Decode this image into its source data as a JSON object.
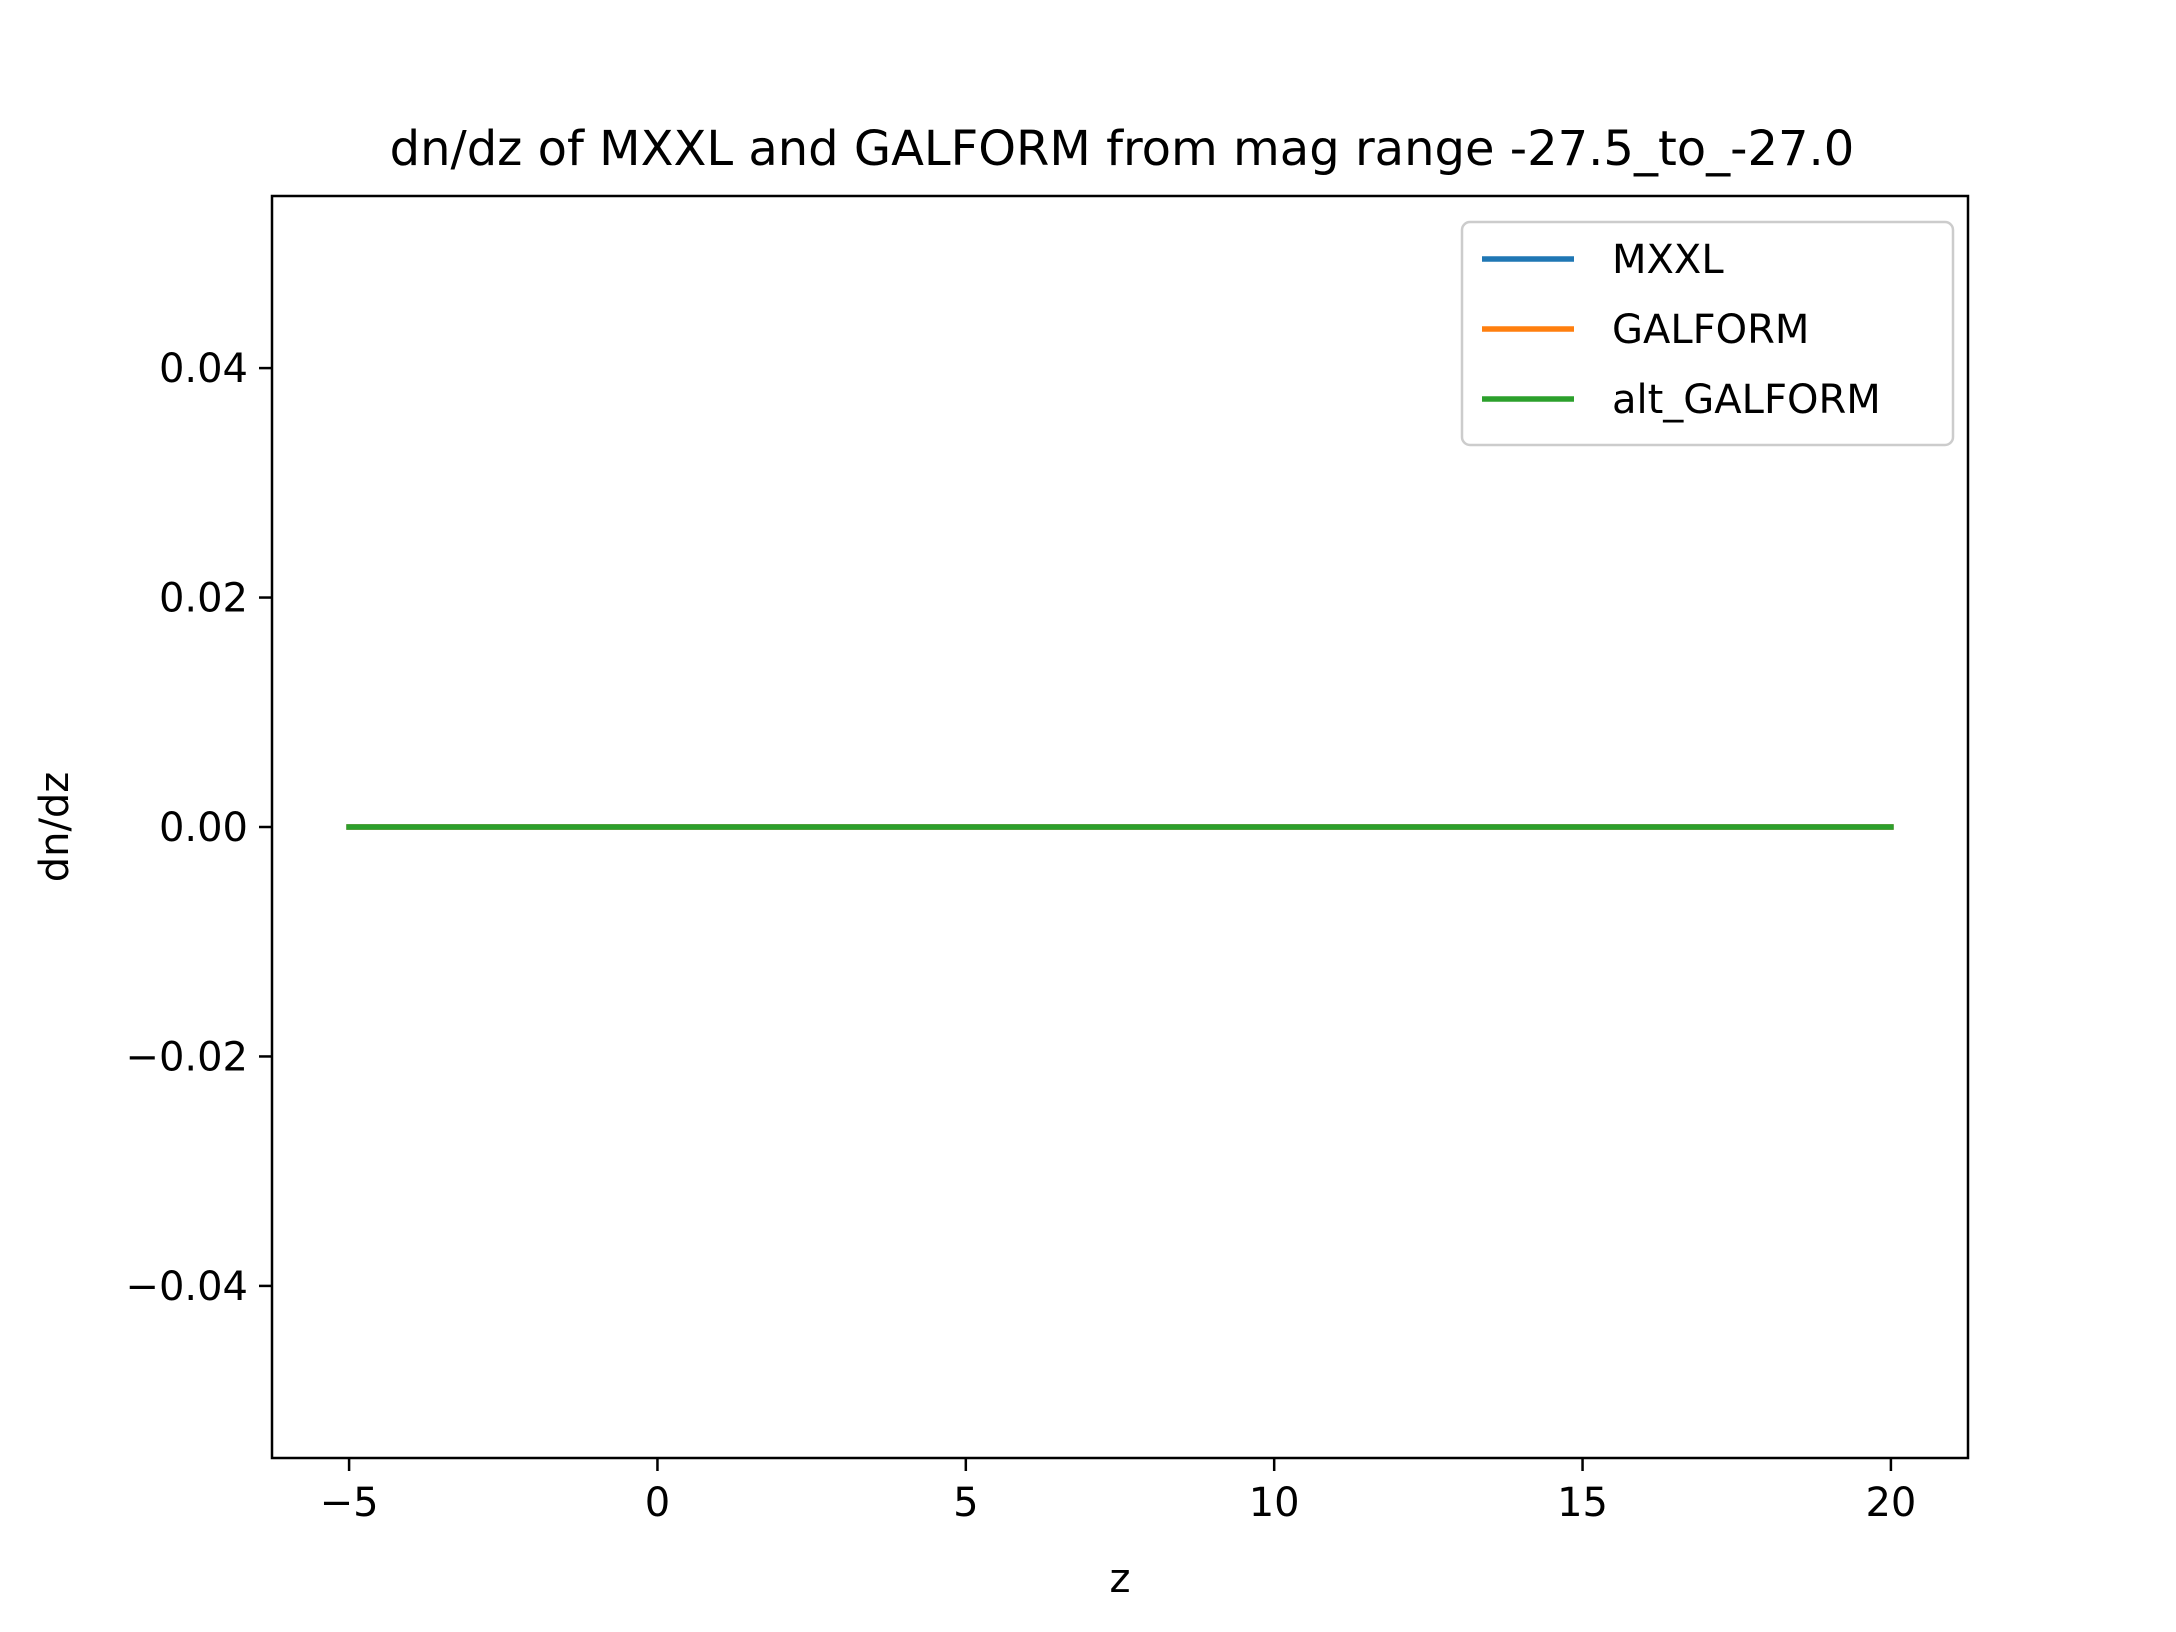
{
  "chart_data": {
    "type": "line",
    "title": "dn/dz of MXXL and GALFORM from mag range -27.5_to_-27.0",
    "xlabel": "z",
    "ylabel": "dn/dz",
    "xlim": [
      -6.25,
      21.25
    ],
    "ylim": [
      -0.055,
      0.055
    ],
    "xticks": [
      -5,
      0,
      5,
      10,
      15,
      20
    ],
    "xtick_labels": [
      "−5",
      "0",
      "5",
      "10",
      "15",
      "20"
    ],
    "yticks": [
      0.04,
      0.02,
      0.0,
      -0.02,
      -0.04
    ],
    "ytick_labels": [
      "0.04",
      "0.02",
      "0.00",
      "−0.02",
      "−0.04"
    ],
    "grid": false,
    "legend_position": "top-right",
    "series": [
      {
        "name": "MXXL",
        "color": "#1f77b4",
        "x": [
          -5,
          20
        ],
        "y": [
          0,
          0
        ]
      },
      {
        "name": "GALFORM",
        "color": "#ff7f0e",
        "x": [
          -5,
          20
        ],
        "y": [
          0,
          0
        ]
      },
      {
        "name": "alt_GALFORM",
        "color": "#2ca02c",
        "x": [
          -5,
          20
        ],
        "y": [
          0,
          0
        ]
      }
    ]
  }
}
